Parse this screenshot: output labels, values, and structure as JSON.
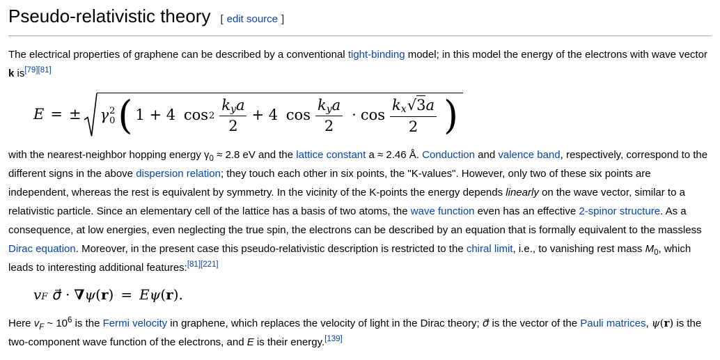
{
  "colors": {
    "link": "#0645ad",
    "text": "#000000",
    "heading_rule": "#a7a7a8",
    "background": "#ffffff"
  },
  "heading": {
    "title": "Pseudo-relativistic theory",
    "bracket_open": "[",
    "edit_label": "edit source",
    "bracket_close": "]"
  },
  "paragraphs": {
    "p1": [
      {
        "t": "The electrical properties of graphene can be described by a conventional ",
        "s": "t"
      },
      {
        "t": "tight-binding",
        "s": "link"
      },
      {
        "t": " model; in this model the energy of the electrons with wave vector ",
        "s": "t"
      },
      {
        "t": "k",
        "s": "b"
      },
      {
        "t": " is",
        "s": "t"
      },
      {
        "t": "[79][81]",
        "s": "ref"
      }
    ],
    "p2": [
      {
        "t": "with the nearest-neighbor hopping energy γ",
        "s": "t"
      },
      {
        "t": "0",
        "s": "sub"
      },
      {
        "t": " ≈ 2.8 eV and the ",
        "s": "t"
      },
      {
        "t": "lattice constant",
        "s": "link"
      },
      {
        "t": " a ≈ 2.46 Å. ",
        "s": "t"
      },
      {
        "t": "Conduction",
        "s": "link"
      },
      {
        "t": " and ",
        "s": "t"
      },
      {
        "t": "valence band",
        "s": "link"
      },
      {
        "t": ", respectively, correspond to the different signs in the above ",
        "s": "t"
      },
      {
        "t": "dispersion relation",
        "s": "link"
      },
      {
        "t": "; they touch each other in six points, the \"K-values\". However, only two of these six points are independent, whereas the rest is equivalent by symmetry. In the vicinity of the K-points the energy depends ",
        "s": "t"
      },
      {
        "t": "linearly",
        "s": "i"
      },
      {
        "t": " on the wave vector, similar to a relativistic particle. Since an elementary cell of the lattice has a basis of two atoms, the ",
        "s": "t"
      },
      {
        "t": "wave function",
        "s": "link"
      },
      {
        "t": " even has an effective ",
        "s": "t"
      },
      {
        "t": "2-spinor structure",
        "s": "link"
      },
      {
        "t": ". As a consequence, at low energies, even neglecting the true spin, the electrons can be described by an equation that is formally equivalent to the massless ",
        "s": "t"
      },
      {
        "t": "Dirac equation",
        "s": "link"
      },
      {
        "t": ". Moreover, in the present case this pseudo-relativistic description is restricted to the ",
        "s": "t"
      },
      {
        "t": "chiral limit",
        "s": "link"
      },
      {
        "t": ", i.e., to vanishing rest mass ",
        "s": "t"
      },
      {
        "t": "M",
        "s": "i"
      },
      {
        "t": "0",
        "s": "sub"
      },
      {
        "t": ", which leads to interesting additional features:",
        "s": "t"
      },
      {
        "t": "[81][221]",
        "s": "ref"
      }
    ],
    "p3": [
      {
        "t": "Here ",
        "s": "t"
      },
      {
        "t": "v",
        "s": "i"
      },
      {
        "t": "F",
        "s": "subi"
      },
      {
        "t": " ~ 10",
        "s": "t"
      },
      {
        "t": "6",
        "s": "sup"
      },
      {
        "t": " is the ",
        "s": "t"
      },
      {
        "t": "Fermi velocity",
        "s": "link"
      },
      {
        "t": " in graphene, which replaces the velocity of light in the Dirac theory; ",
        "s": "t"
      },
      {
        "t": "σ⃗",
        "s": "mathi"
      },
      {
        "t": " is the vector of the ",
        "s": "t"
      },
      {
        "t": "Pauli matrices",
        "s": "link"
      },
      {
        "t": ", ",
        "s": "t"
      },
      {
        "t": "ψ",
        "s": "mathi"
      },
      {
        "t": "(",
        "s": "math"
      },
      {
        "t": "r",
        "s": "mathb"
      },
      {
        "t": ")",
        "s": "math"
      },
      {
        "t": " is the two-component wave function of the electrons, and ",
        "s": "t"
      },
      {
        "t": "E",
        "s": "i"
      },
      {
        "t": " is their energy.",
        "s": "t"
      },
      {
        "t": "[139]",
        "s": "ref"
      }
    ]
  },
  "formula1": {
    "lhs": "E",
    "eq": "=",
    "pm": "±",
    "gamma": "γ",
    "gamma_sup": "2",
    "gamma_sub": "0",
    "paren_open": "(",
    "term1": "1 + 4 ",
    "cos1": "cos",
    "cos1_sup": "2",
    "frac1": {
      "k": "k",
      "sub": "y",
      "a": "a",
      "den": "2"
    },
    "plus": "+ 4 ",
    "cos2": "cos",
    "frac2": {
      "k": "k",
      "sub": "y",
      "a": "a",
      "den": "2"
    },
    "cdot": "·",
    "cos3": "cos",
    "frac3": {
      "k": "k",
      "sub": "x",
      "sqrt": "√",
      "three": "3",
      "a": "a",
      "den": "2"
    },
    "paren_close": ")"
  },
  "formula2": {
    "v": "v",
    "v_sub": "F",
    "sigma": "σ⃗",
    "cdot": "·",
    "nabla": "∇",
    "psi": "ψ",
    "paren_open": "(",
    "r": "r",
    "paren_close": ")",
    "eq": "=",
    "E": "E",
    "psi2": "ψ",
    "paren_open2": "(",
    "r2": "r",
    "paren_close2": ")."
  }
}
